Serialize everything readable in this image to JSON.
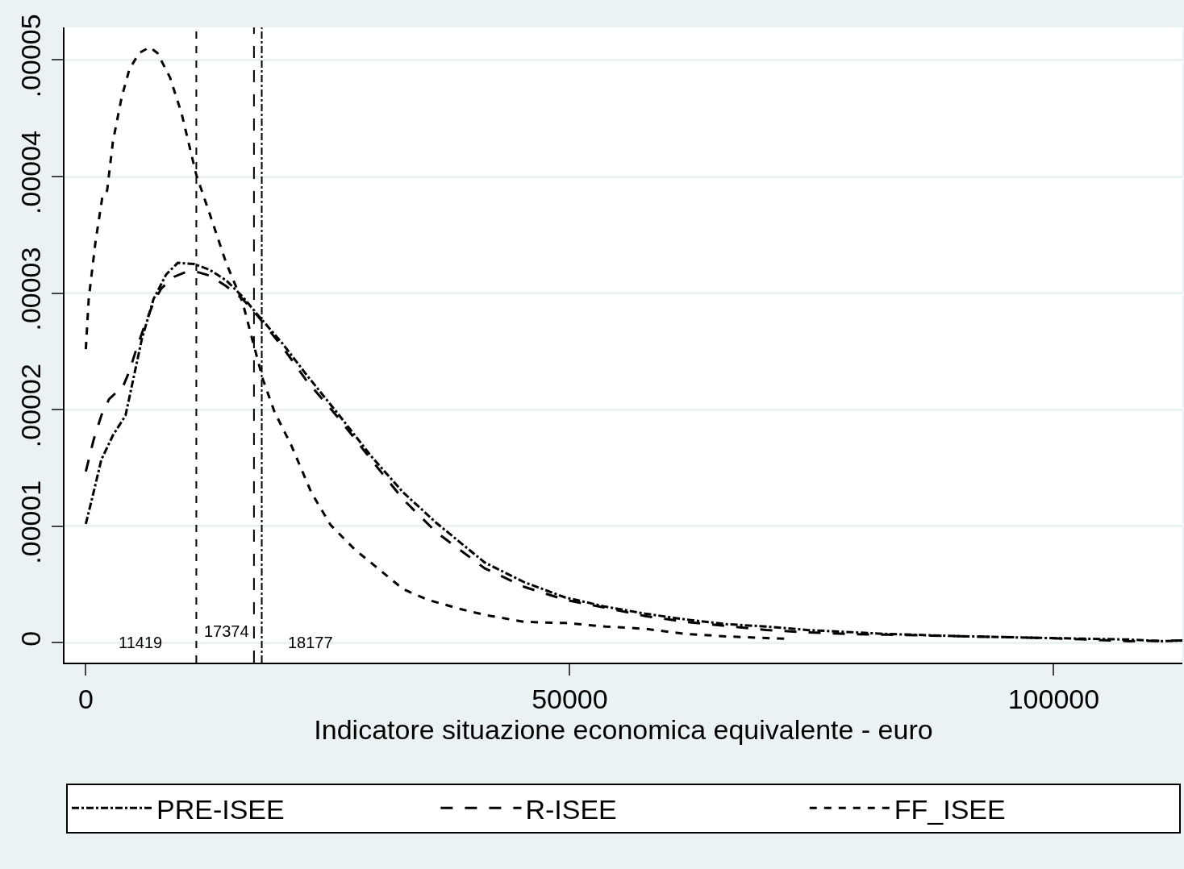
{
  "chart_data": {
    "type": "line",
    "xlabel": "Indicatore situazione economica equivalente - euro",
    "xlim": [
      -2200,
      113300
    ],
    "xticks": [
      0,
      50000,
      100000
    ],
    "ylim": [
      -1.7e-06,
      5.28e-05
    ],
    "yticks": [
      0,
      {
        "value": 1e-05,
        "label": ".00001"
      },
      {
        "value": 2e-05,
        "label": ".00002"
      },
      {
        "value": 3e-05,
        "label": ".00003"
      },
      {
        "value": 4e-05,
        "label": ".00004"
      },
      {
        "value": 5e-05,
        "label": ".00005"
      }
    ],
    "grid": "y",
    "legend": "bottom",
    "marker": "none",
    "series": [
      {
        "name": "PRE-ISEE",
        "color": "#000000",
        "line_style": "dashdot",
        "x": [
          0,
          800,
          1600,
          2800,
          4100,
          4900,
          5800,
          7000,
          8300,
          9500,
          11200,
          12800,
          14500,
          16200,
          17800,
          20300,
          22800,
          26200,
          29500,
          32800,
          36200,
          41200,
          45300,
          49500,
          53700,
          57800,
          62000,
          66200,
          70300,
          74500,
          82800,
          91200,
          99500,
          107800,
          111200,
          113300
        ],
        "values": [
          1.02e-05,
          1.29e-05,
          1.57e-05,
          1.78e-05,
          1.95e-05,
          2.26e-05,
          2.61e-05,
          2.95e-05,
          3.16e-05,
          3.26e-05,
          3.25e-05,
          3.2e-05,
          3.11e-05,
          2.97e-05,
          2.81e-05,
          2.57e-05,
          2.3e-05,
          1.95e-05,
          1.6e-05,
          1.29e-05,
          1.03e-05,
          6.9e-06,
          5.2e-06,
          3.9e-06,
          3.1e-06,
          2.5e-06,
          2e-06,
          1.6e-06,
          1.4e-06,
          1.1e-06,
          7.6e-07,
          5.5e-07,
          4.1e-07,
          2.8e-07,
          1.4e-07,
          2e-07
        ]
      },
      {
        "name": "R-ISEE",
        "color": "#000000",
        "line_style": "longdash",
        "x": [
          0,
          800,
          1600,
          2400,
          3300,
          3800,
          4500,
          5300,
          6200,
          7000,
          7800,
          9100,
          10300,
          11600,
          12800,
          14500,
          16200,
          17800,
          20300,
          22800,
          26200,
          29500,
          32800,
          36200,
          41200,
          45300,
          49500,
          53700,
          57800,
          62000,
          66200,
          70300,
          74500,
          78700,
          82800,
          91200,
          99500,
          107800,
          113300
        ],
        "values": [
          1.47e-05,
          1.74e-05,
          1.95e-05,
          2.09e-05,
          2.16e-05,
          2.19e-05,
          2.33e-05,
          2.54e-05,
          2.75e-05,
          2.92e-05,
          3.04e-05,
          3.14e-05,
          3.18e-05,
          3.18e-05,
          3.15e-05,
          3.06e-05,
          2.95e-05,
          2.8e-05,
          2.54e-05,
          2.25e-05,
          1.92e-05,
          1.57e-05,
          1.23e-05,
          9.5e-06,
          6.4e-06,
          4.8e-06,
          3.7e-06,
          3e-06,
          2.3e-06,
          1.8e-06,
          1.45e-06,
          1.1e-06,
          9e-07,
          7.6e-07,
          7e-07,
          5.5e-07,
          4.1e-07,
          1.4e-07,
          2e-07
        ]
      },
      {
        "name": "FF_ISEE",
        "color": "#000000",
        "line_style": "dashed",
        "x": [
          0,
          300,
          1000,
          1700,
          2200,
          2800,
          3700,
          4500,
          5500,
          6600,
          7400,
          8700,
          9900,
          11400,
          12800,
          14500,
          16200,
          17400,
          18300,
          19500,
          21200,
          23300,
          25300,
          27800,
          30300,
          32800,
          35300,
          38700,
          41200,
          45300,
          49500,
          53700,
          57800,
          62000,
          66200,
          70300,
          72400
        ],
        "values": [
          2.52e-05,
          2.95e-05,
          3.44e-05,
          3.82e-05,
          3.88e-05,
          4.3e-05,
          4.68e-05,
          4.92e-05,
          5.06e-05,
          5.11e-05,
          5.06e-05,
          4.85e-05,
          4.54e-05,
          4.02e-05,
          3.68e-05,
          3.26e-05,
          2.92e-05,
          2.54e-05,
          2.26e-05,
          1.98e-05,
          1.7e-05,
          1.29e-05,
          1.01e-05,
          8e-06,
          6.3e-06,
          4.6e-06,
          3.7e-06,
          2.9e-06,
          2.4e-06,
          1.8e-06,
          1.7e-06,
          1.4e-06,
          1.2e-06,
          7.6e-07,
          5.5e-07,
          4.1e-07,
          3.5e-07
        ]
      }
    ],
    "ref_lines": [
      {
        "axis": "x",
        "value": 11419,
        "label": "11419",
        "line_style": "dashed",
        "color": "#000000"
      },
      {
        "axis": "x",
        "value": 17374,
        "label": "17374",
        "line_style": "longdash",
        "color": "#000000"
      },
      {
        "axis": "x",
        "value": 18177,
        "label": "18177",
        "line_style": "dashdot",
        "color": "#000000"
      }
    ]
  }
}
